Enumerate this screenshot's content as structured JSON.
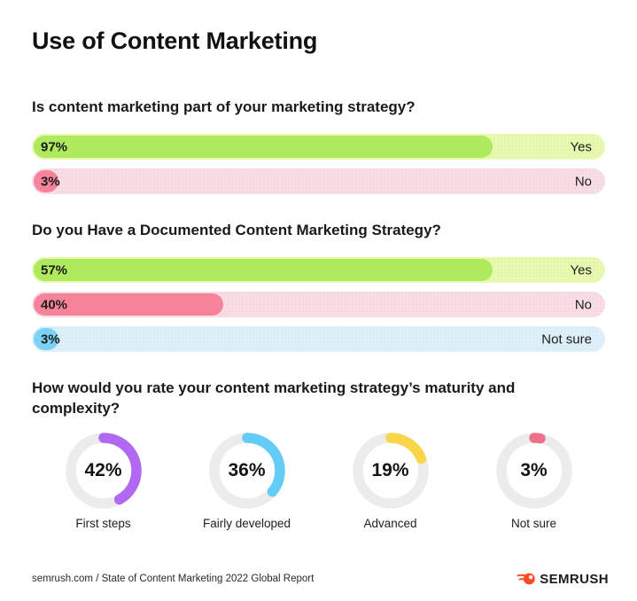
{
  "page": {
    "title": "Use of Content Marketing",
    "background": "#ffffff"
  },
  "chart_data": [
    {
      "type": "bar",
      "title": "Is content marketing part of your marketing strategy?",
      "categories": [
        "Yes",
        "No"
      ],
      "values": [
        97,
        3
      ],
      "bars": [
        {
          "category": "Yes",
          "value": 97,
          "value_label": "97%",
          "fill_color": "#aee95e",
          "track_color": "#e7fab0",
          "display_fill_pct": 80
        },
        {
          "category": "No",
          "value": 3,
          "value_label": "3%",
          "fill_color": "#f7839b",
          "track_color": "#f9dde4",
          "display_fill_pct": 4.4
        }
      ]
    },
    {
      "type": "bar",
      "title": "Do you Have a Documented Content Marketing Strategy?",
      "categories": [
        "Yes",
        "No",
        "Not sure"
      ],
      "values": [
        57,
        40,
        3
      ],
      "bars": [
        {
          "category": "Yes",
          "value": 57,
          "value_label": "57%",
          "fill_color": "#aee95e",
          "track_color": "#e7fab0",
          "display_fill_pct": 80
        },
        {
          "category": "No",
          "value": 40,
          "value_label": "40%",
          "fill_color": "#f7839b",
          "track_color": "#f9dde4",
          "display_fill_pct": 33
        },
        {
          "category": "Not sure",
          "value": 3,
          "value_label": "3%",
          "fill_color": "#7cd2f4",
          "track_color": "#def1fb",
          "display_fill_pct": 4.4
        }
      ]
    },
    {
      "type": "donut",
      "title": "How would you rate your content marketing strategy’s maturity and complexity?",
      "categories": [
        "First steps",
        "Fairly developed",
        "Advanced",
        "Not sure"
      ],
      "values": [
        42,
        36,
        19,
        3
      ],
      "track_color": "#ececec",
      "donuts": [
        {
          "category": "First steps",
          "value": 42,
          "value_label": "42%",
          "color": "#b168f2"
        },
        {
          "category": "Fairly developed",
          "value": 36,
          "value_label": "36%",
          "color": "#63ccf7"
        },
        {
          "category": "Advanced",
          "value": 19,
          "value_label": "19%",
          "color": "#f8d549"
        },
        {
          "category": "Not sure",
          "value": 3,
          "value_label": "3%",
          "color": "#ee7189"
        }
      ]
    }
  ],
  "footer": {
    "source": "semrush.com / State of Content Marketing 2022 Global Report",
    "brand": "SEMRUSH",
    "brand_icon": "semrush-flame-icon",
    "brand_color": "#ff4b24"
  }
}
